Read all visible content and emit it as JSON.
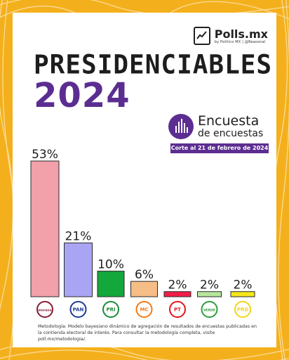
{
  "brand": {
    "name": "Polls.mx",
    "sub": "by Politico MX | @Reasonal"
  },
  "title_line1": "PRESIDENCIABLES",
  "title_line2": "2024",
  "badge": {
    "line1": "Encuesta",
    "line2": "de encuestas",
    "date": "Corte al 21 de febrero de 2024"
  },
  "colors": {
    "background": "#f4b01c",
    "accent": "#5c2d91"
  },
  "chart_data": {
    "type": "bar",
    "categories": [
      "morena",
      "PAN",
      "PRI",
      "MC",
      "PT",
      "VERDE",
      "PRD"
    ],
    "values": [
      53,
      21,
      10,
      6,
      2,
      2,
      2
    ],
    "data_labels": [
      "53%",
      "21%",
      "10%",
      "6%",
      "2%",
      "2%",
      "2%"
    ],
    "colors": [
      "#f2a0aa",
      "#a9a4f3",
      "#14a83c",
      "#f6bd87",
      "#f21d4a",
      "#b7e69b",
      "#f4e61a"
    ],
    "icon_colors": [
      "#8a1b33",
      "#1f3c95",
      "#1a8a3a",
      "#f27b14",
      "#e3141e",
      "#2e9c3b",
      "#f2d41a"
    ],
    "ylim": [
      0,
      53
    ]
  },
  "methodology": "Metodología: Modelo bayesiano dinámico de agregación de resultados de encuestas publicadas en la contienda electoral de interés. Para consultar la metodología completa, visite poll.mx/metodologia/."
}
